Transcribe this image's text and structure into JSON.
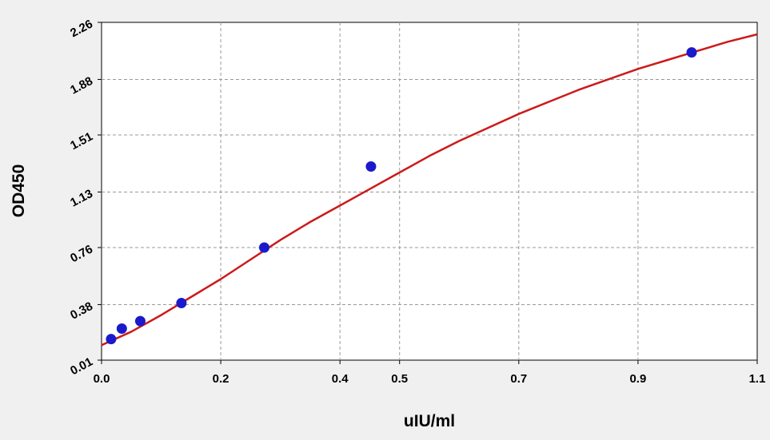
{
  "chart_data": {
    "type": "scatter",
    "title": "",
    "xlabel": "uIU/ml",
    "ylabel": "OD450",
    "xlim": [
      0.0,
      1.1
    ],
    "ylim": [
      0.01,
      2.26
    ],
    "x_ticks": [
      {
        "value": 0.0,
        "label": "0.0"
      },
      {
        "value": 0.2,
        "label": "0.2"
      },
      {
        "value": 0.4,
        "label": "0.4"
      },
      {
        "value": 0.5,
        "label": "0.5"
      },
      {
        "value": 0.7,
        "label": "0.7"
      },
      {
        "value": 0.9,
        "label": "0.9"
      },
      {
        "value": 1.1,
        "label": "1.1"
      }
    ],
    "y_ticks": [
      {
        "value": 0.01,
        "label": "0.01"
      },
      {
        "value": 0.38,
        "label": "0.38"
      },
      {
        "value": 0.76,
        "label": "0.76"
      },
      {
        "value": 1.13,
        "label": "1.13"
      },
      {
        "value": 1.51,
        "label": "1.51"
      },
      {
        "value": 1.88,
        "label": "1.88"
      },
      {
        "value": 2.26,
        "label": "2.26"
      }
    ],
    "grid": true,
    "series": [
      {
        "type": "scatter",
        "color": "#1a1acc",
        "points": [
          {
            "x": 0.016,
            "y": 0.15
          },
          {
            "x": 0.034,
            "y": 0.22
          },
          {
            "x": 0.065,
            "y": 0.27
          },
          {
            "x": 0.134,
            "y": 0.39
          },
          {
            "x": 0.273,
            "y": 0.76
          },
          {
            "x": 0.452,
            "y": 1.3
          },
          {
            "x": 0.99,
            "y": 2.06
          }
        ]
      },
      {
        "type": "line",
        "color": "#cc1a1a",
        "points": [
          {
            "x": 0.0,
            "y": 0.11
          },
          {
            "x": 0.05,
            "y": 0.2
          },
          {
            "x": 0.1,
            "y": 0.31
          },
          {
            "x": 0.15,
            "y": 0.43
          },
          {
            "x": 0.2,
            "y": 0.55
          },
          {
            "x": 0.25,
            "y": 0.68
          },
          {
            "x": 0.3,
            "y": 0.81
          },
          {
            "x": 0.35,
            "y": 0.93
          },
          {
            "x": 0.4,
            "y": 1.04
          },
          {
            "x": 0.45,
            "y": 1.15
          },
          {
            "x": 0.5,
            "y": 1.26
          },
          {
            "x": 0.55,
            "y": 1.37
          },
          {
            "x": 0.6,
            "y": 1.47
          },
          {
            "x": 0.65,
            "y": 1.56
          },
          {
            "x": 0.7,
            "y": 1.65
          },
          {
            "x": 0.75,
            "y": 1.73
          },
          {
            "x": 0.8,
            "y": 1.81
          },
          {
            "x": 0.85,
            "y": 1.88
          },
          {
            "x": 0.9,
            "y": 1.95
          },
          {
            "x": 0.95,
            "y": 2.01
          },
          {
            "x": 1.0,
            "y": 2.07
          },
          {
            "x": 1.05,
            "y": 2.13
          },
          {
            "x": 1.1,
            "y": 2.18
          }
        ]
      }
    ]
  }
}
